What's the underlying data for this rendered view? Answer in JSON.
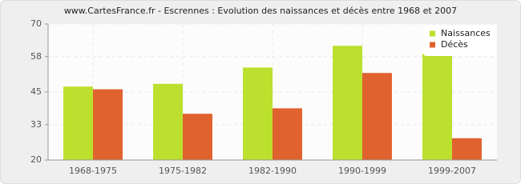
{
  "chart_data": {
    "type": "bar",
    "title": "www.CartesFrance.fr - Escrennes : Evolution des naissances et décès entre 1968 et 2007",
    "categories": [
      "1968-1975",
      "1975-1982",
      "1982-1990",
      "1990-1999",
      "1999-2007"
    ],
    "series": [
      {
        "name": "Naissances",
        "color": "#bbe02e",
        "values": [
          47,
          48,
          54,
          62,
          59
        ]
      },
      {
        "name": "Décès",
        "color": "#e0622f",
        "values": [
          46,
          37,
          39,
          52,
          28
        ]
      }
    ],
    "ylim": [
      20,
      70
    ],
    "yticks": [
      20,
      33,
      45,
      58,
      70
    ],
    "grid": true,
    "legend": "top-right"
  }
}
